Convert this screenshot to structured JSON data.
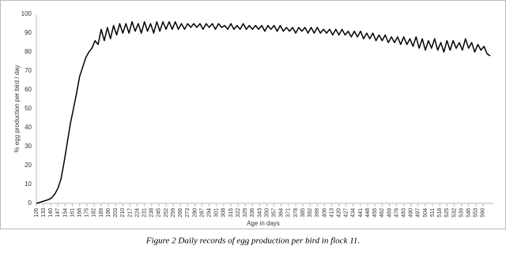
{
  "chart_data": {
    "type": "line",
    "caption": "Figure 2 Daily records of egg production per bird in flock 11.",
    "x_label": "Age in days",
    "y_label": "% egg production  per bird / day",
    "x": [
      126,
      129,
      132,
      135,
      138,
      141,
      144,
      147,
      150,
      153,
      156,
      159,
      162,
      165,
      168,
      171,
      174,
      177,
      180,
      183,
      186,
      189,
      192,
      195,
      198,
      201,
      204,
      207,
      210,
      213,
      216,
      219,
      222,
      225,
      228,
      231,
      234,
      237,
      240,
      243,
      246,
      249,
      252,
      255,
      258,
      261,
      264,
      267,
      270,
      273,
      276,
      279,
      282,
      285,
      288,
      291,
      294,
      297,
      300,
      303,
      306,
      309,
      312,
      315,
      318,
      321,
      324,
      327,
      330,
      333,
      336,
      339,
      342,
      345,
      348,
      351,
      354,
      357,
      360,
      363,
      366,
      369,
      372,
      375,
      378,
      381,
      384,
      387,
      390,
      393,
      396,
      399,
      402,
      405,
      408,
      411,
      414,
      417,
      420,
      423,
      426,
      429,
      432,
      435,
      438,
      441,
      444,
      447,
      450,
      453,
      456,
      459,
      462,
      465,
      468,
      471,
      474,
      477,
      480,
      483,
      486,
      489,
      492,
      495,
      498,
      501,
      504,
      507,
      510,
      513,
      516,
      519,
      522,
      525,
      528,
      531,
      534,
      537,
      540,
      543,
      546,
      549,
      552,
      555,
      558,
      561,
      564,
      567
    ],
    "values": [
      0,
      0.5,
      1,
      1.5,
      2,
      3,
      5,
      8,
      13,
      22,
      32,
      42,
      50,
      58,
      67,
      72,
      77,
      80,
      82,
      86,
      84,
      92,
      86,
      93,
      87,
      94,
      89,
      95,
      90,
      95,
      90,
      96,
      91,
      95,
      90,
      96,
      91,
      95,
      90,
      96,
      91,
      96,
      92,
      96,
      92,
      96,
      92,
      95,
      92,
      95,
      93,
      95,
      93,
      95,
      92,
      95,
      93,
      95,
      92,
      95,
      93,
      94,
      92,
      95,
      92,
      94,
      92,
      95,
      92,
      94,
      92,
      94,
      92,
      94,
      91,
      94,
      92,
      94,
      91,
      94,
      91,
      93,
      91,
      93,
      90,
      93,
      91,
      93,
      90,
      93,
      90,
      93,
      90,
      92,
      90,
      92,
      89,
      92,
      89,
      92,
      89,
      91,
      88,
      91,
      88,
      91,
      87,
      90,
      87,
      90,
      86,
      89,
      86,
      89,
      85,
      88,
      85,
      88,
      84,
      88,
      84,
      87,
      83,
      88,
      82,
      87,
      81,
      86,
      82,
      87,
      81,
      85,
      80,
      86,
      81,
      86,
      82,
      85,
      81,
      87,
      82,
      85,
      80,
      84,
      81,
      83,
      79,
      78
    ],
    "color": "#000000",
    "xlim": [
      126,
      567
    ],
    "xticks": [
      126,
      133,
      140,
      147,
      154,
      161,
      168,
      175,
      182,
      189,
      196,
      203,
      210,
      217,
      224,
      231,
      238,
      245,
      252,
      259,
      266,
      273,
      280,
      287,
      294,
      301,
      308,
      315,
      322,
      329,
      336,
      343,
      350,
      357,
      364,
      371,
      378,
      385,
      392,
      399,
      406,
      413,
      420,
      427,
      434,
      441,
      448,
      455,
      462,
      469,
      476,
      483,
      490,
      497,
      504,
      511,
      518,
      525,
      532,
      539,
      546,
      553,
      560
    ],
    "ylim": [
      0,
      100
    ],
    "yticks": [
      0,
      10,
      20,
      30,
      40,
      50,
      60,
      70,
      80,
      90,
      100
    ],
    "grid": false
  }
}
